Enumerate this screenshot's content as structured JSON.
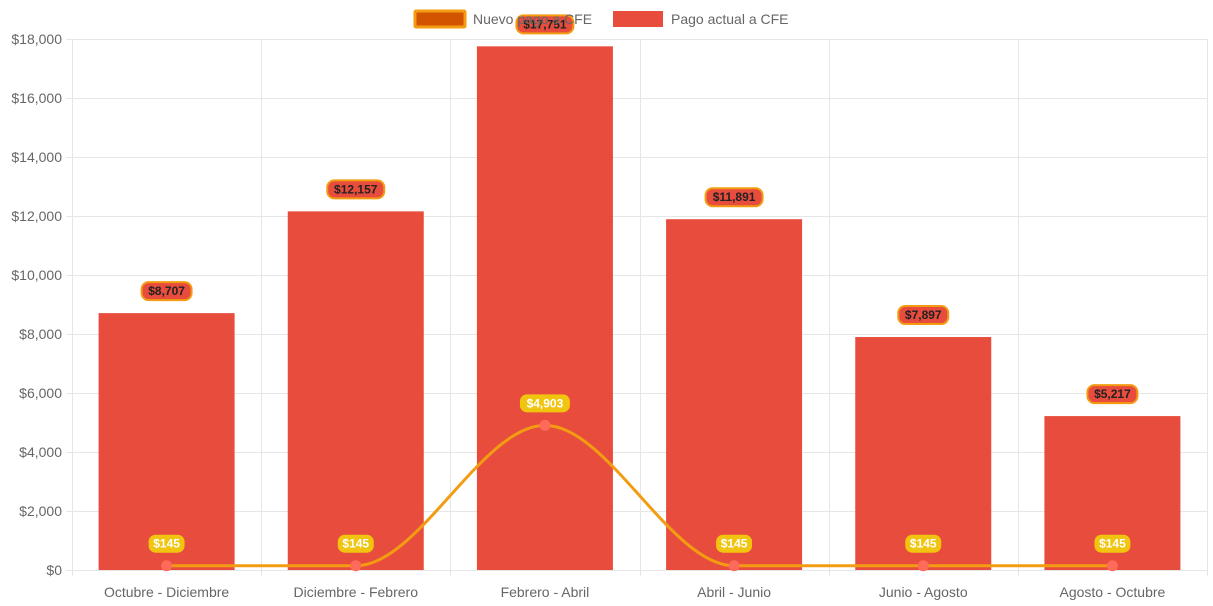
{
  "chart_data": {
    "type": "bar",
    "categories": [
      "Octubre - Diciembre",
      "Diciembre - Febrero",
      "Febrero - Abril",
      "Abril - Junio",
      "Junio - Agosto",
      "Agosto - Octubre"
    ],
    "series": [
      {
        "name": "Nuevo pago a CFE",
        "type": "line",
        "color": "#f39c12",
        "point_color": "#ff6b5a",
        "values": [
          145,
          145,
          4903,
          145,
          145,
          145
        ],
        "labels": [
          "$145",
          "$145",
          "$4,903",
          "$145",
          "$145",
          "$145"
        ]
      },
      {
        "name": "Pago actual a CFE",
        "type": "bar",
        "color": "#e74c3c",
        "values": [
          8707,
          12157,
          17751,
          11891,
          7897,
          5217
        ],
        "labels": [
          "$8,707",
          "$12,157",
          "$17,751",
          "$11,891",
          "$7,897",
          "$5,217"
        ]
      }
    ],
    "ylim": [
      0,
      18000
    ],
    "yticks": [
      "$0",
      "$2,000",
      "$4,000",
      "$6,000",
      "$8,000",
      "$10,000",
      "$12,000",
      "$14,000",
      "$16,000",
      "$18,000"
    ],
    "grid": true,
    "legend": "top-center",
    "colors": {
      "line_legend_fill": "#d35400",
      "bar_label_bg": "#f39c12",
      "line_label_bg": "#f1c40f",
      "grid": "#e6e6e6"
    }
  }
}
